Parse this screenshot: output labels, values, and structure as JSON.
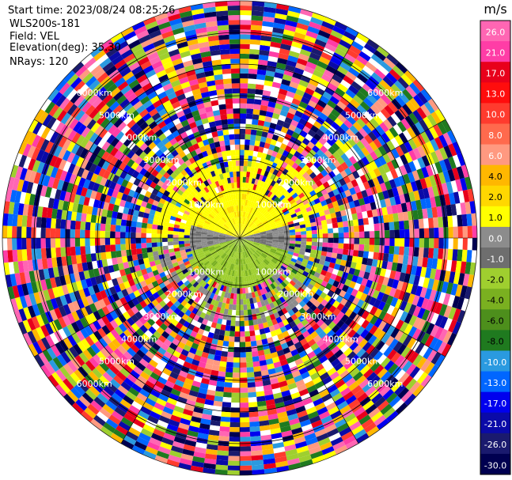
{
  "header": {
    "start_time": "Start time: 2023/08/24 08:25:26",
    "instrument": "WLS200s-181",
    "field": "Field: VEL",
    "elevation": "Elevation(deg): 35.30",
    "nrays": "NRays: 120"
  },
  "chart_data": {
    "type": "heatmap",
    "projection": "polar PPI",
    "range_ring_labels": [
      "1000km",
      "2000km",
      "3000km",
      "4000km",
      "5000km",
      "6000km"
    ],
    "colorbar": {
      "unit": "m/s",
      "ticks": [
        "26.0",
        "21.0",
        "17.0",
        "13.0",
        "10.0",
        "8.0",
        "6.0",
        "4.0",
        "2.0",
        "1.0",
        "0.0",
        "-1.0",
        "-2.0",
        "-4.0",
        "-6.0",
        "-8.0",
        "-10.0",
        "-13.0",
        "-17.0",
        "-21.0",
        "-26.0",
        "-30.0"
      ],
      "colors": [
        "#ff66b3",
        "#ff3da6",
        "#e8001b",
        "#ff0d0d",
        "#ff3b2e",
        "#ff6a4d",
        "#ff9980",
        "#ffb700",
        "#ffd700",
        "#ffff00",
        "#8c8c8c",
        "#6e6e6e",
        "#9fcf2f",
        "#7ab020",
        "#4d8f1c",
        "#1f7a1f",
        "#2a9ae0",
        "#0066ff",
        "#0000ee",
        "#0a0aa8",
        "#1a1a6e",
        "#000050"
      ]
    }
  }
}
